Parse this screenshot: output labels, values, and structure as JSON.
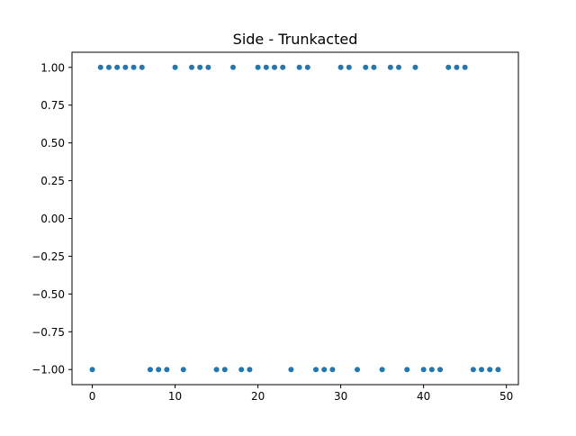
{
  "chart_data": {
    "type": "scatter",
    "title": "Side - Trunkacted",
    "xlabel": "",
    "ylabel": "",
    "xlim": [
      -2.45,
      51.45
    ],
    "ylim": [
      -1.1,
      1.1
    ],
    "x_ticks": [
      0,
      10,
      20,
      30,
      40,
      50
    ],
    "x_tick_labels": [
      "0",
      "10",
      "20",
      "30",
      "40",
      "50"
    ],
    "y_ticks": [
      -1.0,
      -0.75,
      -0.5,
      -0.25,
      0.0,
      0.25,
      0.5,
      0.75,
      1.0
    ],
    "y_tick_labels": [
      "−1.00",
      "−0.75",
      "−0.50",
      "−0.25",
      "0.00",
      "0.25",
      "0.50",
      "0.75",
      "1.00"
    ],
    "grid": false,
    "legend": "none",
    "series": [
      {
        "color": "#1f77b4",
        "x": [
          0,
          1,
          2,
          3,
          4,
          5,
          6,
          7,
          8,
          9,
          10,
          11,
          12,
          13,
          14,
          15,
          16,
          17,
          18,
          19,
          20,
          21,
          22,
          23,
          24,
          25,
          26,
          27,
          28,
          29,
          30,
          31,
          32,
          33,
          34,
          35,
          36,
          37,
          38,
          39,
          40,
          41,
          42,
          43,
          44,
          45,
          46,
          47,
          48,
          49
        ],
        "y": [
          -1,
          1,
          1,
          1,
          1,
          1,
          1,
          -1,
          -1,
          -1,
          1,
          -1,
          1,
          1,
          1,
          -1,
          -1,
          1,
          -1,
          -1,
          1,
          1,
          1,
          1,
          -1,
          1,
          1,
          -1,
          -1,
          -1,
          1,
          1,
          -1,
          1,
          1,
          -1,
          1,
          1,
          -1,
          1,
          -1,
          -1,
          -1,
          1,
          1,
          1,
          -1,
          -1,
          -1,
          -1
        ]
      }
    ]
  }
}
